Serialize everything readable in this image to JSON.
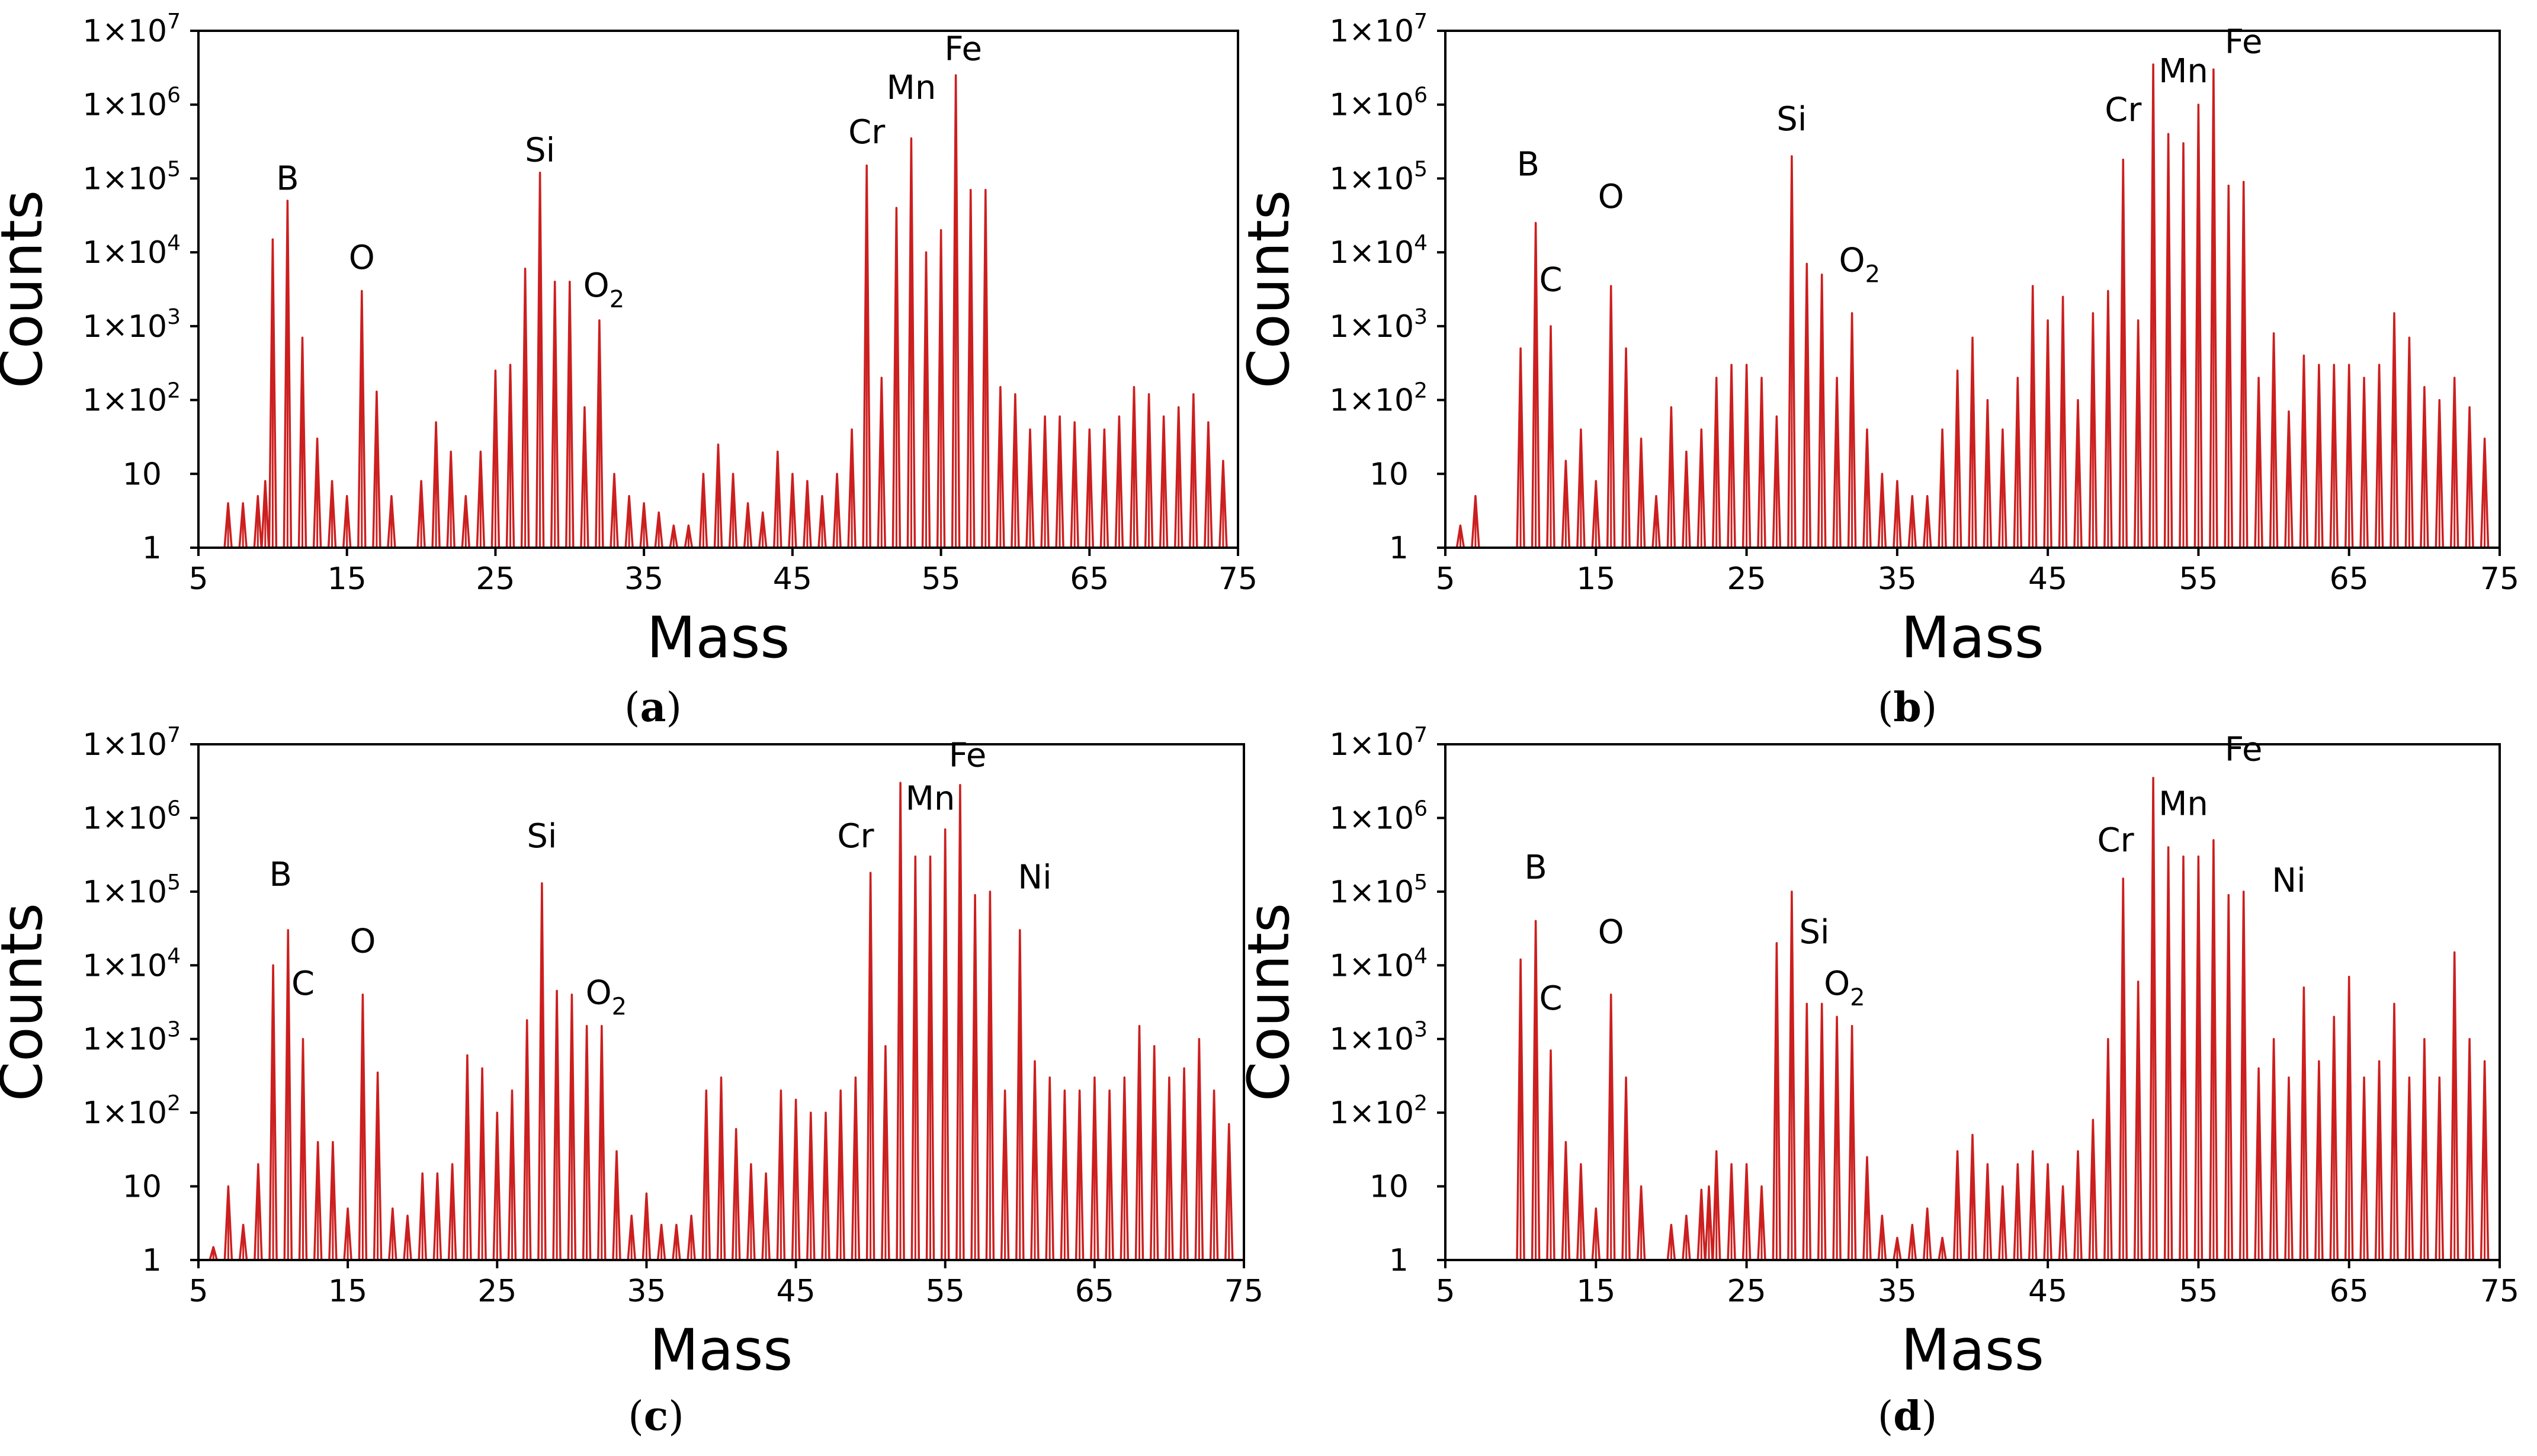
{
  "figure": {
    "series_color": "#cc1f1f",
    "axis_color": "#000000",
    "xlabel": "Mass",
    "ylabel": "Counts",
    "x_range": [
      5,
      75
    ],
    "x_ticks": [
      {
        "value": 5,
        "label": "5"
      },
      {
        "value": 15,
        "label": "15"
      },
      {
        "value": 25,
        "label": "25"
      },
      {
        "value": 35,
        "label": "35"
      },
      {
        "value": 45,
        "label": "45"
      },
      {
        "value": 55,
        "label": "55"
      },
      {
        "value": 65,
        "label": "65"
      },
      {
        "value": 75,
        "label": "75"
      }
    ],
    "y_range_log10": [
      0,
      7
    ],
    "y_ticks": [
      {
        "exp": 0,
        "label": "1"
      },
      {
        "exp": 1,
        "label": "10"
      },
      {
        "exp": 2,
        "label": "1×10",
        "sup": "2"
      },
      {
        "exp": 3,
        "label": "1×10",
        "sup": "3"
      },
      {
        "exp": 4,
        "label": "1×10",
        "sup": "4"
      },
      {
        "exp": 5,
        "label": "1×10",
        "sup": "5"
      },
      {
        "exp": 6,
        "label": "1×10",
        "sup": "6"
      },
      {
        "exp": 7,
        "label": "1×10",
        "sup": "7"
      }
    ]
  },
  "chart_data": [
    {
      "type": "line",
      "panel": "a",
      "caption": "a",
      "xlabel": "Mass",
      "ylabel": "Counts",
      "yscale": "log",
      "xlim": [
        5,
        75
      ],
      "ylim": [
        1,
        10000000
      ],
      "peaks": [
        [
          7,
          4
        ],
        [
          8,
          4
        ],
        [
          9,
          5
        ],
        [
          9.5,
          8
        ],
        [
          10,
          15000
        ],
        [
          11,
          50000
        ],
        [
          12,
          700
        ],
        [
          13,
          30
        ],
        [
          14,
          8
        ],
        [
          15,
          5
        ],
        [
          16,
          3000
        ],
        [
          17,
          130
        ],
        [
          18,
          5
        ],
        [
          20,
          8
        ],
        [
          21,
          50
        ],
        [
          22,
          20
        ],
        [
          23,
          5
        ],
        [
          24,
          20
        ],
        [
          25,
          250
        ],
        [
          26,
          300
        ],
        [
          27,
          6000
        ],
        [
          28,
          120000
        ],
        [
          29,
          4000
        ],
        [
          30,
          4000
        ],
        [
          31,
          80
        ],
        [
          32,
          1200
        ],
        [
          33,
          10
        ],
        [
          34,
          5
        ],
        [
          35,
          4
        ],
        [
          36,
          3
        ],
        [
          37,
          2
        ],
        [
          38,
          2
        ],
        [
          39,
          10
        ],
        [
          40,
          25
        ],
        [
          41,
          10
        ],
        [
          42,
          4
        ],
        [
          43,
          3
        ],
        [
          44,
          20
        ],
        [
          45,
          10
        ],
        [
          46,
          8
        ],
        [
          47,
          5
        ],
        [
          48,
          10
        ],
        [
          49,
          40
        ],
        [
          50,
          150000
        ],
        [
          51,
          200
        ],
        [
          52,
          40000
        ],
        [
          53,
          350000
        ],
        [
          54,
          10000
        ],
        [
          55,
          20000
        ],
        [
          56,
          2500000
        ],
        [
          57,
          70000
        ],
        [
          58,
          70000
        ],
        [
          59,
          150
        ],
        [
          60,
          120
        ],
        [
          61,
          40
        ],
        [
          62,
          60
        ],
        [
          63,
          60
        ],
        [
          64,
          50
        ],
        [
          65,
          40
        ],
        [
          66,
          40
        ],
        [
          67,
          60
        ],
        [
          68,
          150
        ],
        [
          69,
          120
        ],
        [
          70,
          60
        ],
        [
          71,
          80
        ],
        [
          72,
          120
        ],
        [
          73,
          50
        ],
        [
          74,
          15
        ]
      ],
      "labels": [
        {
          "text": "B",
          "x": 11,
          "y": 70000
        },
        {
          "text": "O",
          "x": 16,
          "y": 6000
        },
        {
          "text": "Si",
          "x": 28,
          "y": 170000
        },
        {
          "text": "O",
          "sub": "2",
          "x": 32.3,
          "y": 2500
        },
        {
          "text": "Cr",
          "x": 50,
          "y": 300000
        },
        {
          "text": "Mn",
          "x": 53,
          "y": 1200000
        },
        {
          "text": "Fe",
          "x": 56.5,
          "y": 4000000
        }
      ]
    },
    {
      "type": "line",
      "panel": "b",
      "caption": "b",
      "xlabel": "Mass",
      "ylabel": "Counts",
      "yscale": "log",
      "xlim": [
        5,
        75
      ],
      "ylim": [
        1,
        10000000
      ],
      "peaks": [
        [
          6,
          2
        ],
        [
          7,
          5
        ],
        [
          10,
          500
        ],
        [
          11,
          25000
        ],
        [
          12,
          1000
        ],
        [
          13,
          15
        ],
        [
          14,
          40
        ],
        [
          15,
          8
        ],
        [
          16,
          3500
        ],
        [
          17,
          500
        ],
        [
          18,
          30
        ],
        [
          19,
          5
        ],
        [
          20,
          80
        ],
        [
          21,
          20
        ],
        [
          22,
          40
        ],
        [
          23,
          200
        ],
        [
          24,
          300
        ],
        [
          25,
          300
        ],
        [
          26,
          200
        ],
        [
          27,
          60
        ],
        [
          28,
          200000
        ],
        [
          29,
          7000
        ],
        [
          30,
          5000
        ],
        [
          31,
          200
        ],
        [
          32,
          1500
        ],
        [
          33,
          40
        ],
        [
          34,
          10
        ],
        [
          35,
          8
        ],
        [
          36,
          5
        ],
        [
          37,
          5
        ],
        [
          38,
          40
        ],
        [
          39,
          250
        ],
        [
          40,
          700
        ],
        [
          41,
          100
        ],
        [
          42,
          40
        ],
        [
          43,
          200
        ],
        [
          44,
          3500
        ],
        [
          45,
          1200
        ],
        [
          46,
          2500
        ],
        [
          47,
          100
        ],
        [
          48,
          1500
        ],
        [
          49,
          3000
        ],
        [
          50,
          180000
        ],
        [
          51,
          1200
        ],
        [
          52,
          3500000
        ],
        [
          53,
          400000
        ],
        [
          54,
          300000
        ],
        [
          55,
          1000000
        ],
        [
          56,
          3000000
        ],
        [
          57,
          80000
        ],
        [
          58,
          90000
        ],
        [
          59,
          200
        ],
        [
          60,
          800
        ],
        [
          61,
          70
        ],
        [
          62,
          400
        ],
        [
          63,
          300
        ],
        [
          64,
          300
        ],
        [
          65,
          300
        ],
        [
          66,
          200
        ],
        [
          67,
          300
        ],
        [
          68,
          1500
        ],
        [
          69,
          700
        ],
        [
          70,
          150
        ],
        [
          71,
          100
        ],
        [
          72,
          200
        ],
        [
          73,
          80
        ],
        [
          74,
          30
        ]
      ],
      "labels": [
        {
          "text": "B",
          "x": 10.5,
          "y": 110000
        },
        {
          "text": "C",
          "x": 12,
          "y": 3000
        },
        {
          "text": "O",
          "x": 16,
          "y": 40000
        },
        {
          "text": "Si",
          "x": 28,
          "y": 450000
        },
        {
          "text": "O",
          "sub": "2",
          "x": 32.5,
          "y": 5500
        },
        {
          "text": "Cr",
          "x": 50,
          "y": 600000
        },
        {
          "text": "Mn",
          "x": 54,
          "y": 2000000
        },
        {
          "text": "Fe",
          "x": 58,
          "y": 5000000
        }
      ]
    },
    {
      "type": "line",
      "panel": "c",
      "caption": "c",
      "xlabel": "Mass",
      "ylabel": "Counts",
      "yscale": "log",
      "xlim": [
        5,
        75
      ],
      "ylim": [
        1,
        10000000
      ],
      "peaks": [
        [
          6,
          1.5
        ],
        [
          7,
          10
        ],
        [
          8,
          3
        ],
        [
          9,
          20
        ],
        [
          10,
          10000
        ],
        [
          11,
          30000
        ],
        [
          12,
          1000
        ],
        [
          13,
          40
        ],
        [
          14,
          40
        ],
        [
          15,
          5
        ],
        [
          16,
          4000
        ],
        [
          17,
          350
        ],
        [
          18,
          5
        ],
        [
          19,
          4
        ],
        [
          20,
          15
        ],
        [
          21,
          15
        ],
        [
          22,
          20
        ],
        [
          23,
          600
        ],
        [
          24,
          400
        ],
        [
          25,
          100
        ],
        [
          26,
          200
        ],
        [
          27,
          1800
        ],
        [
          28,
          130000
        ],
        [
          29,
          4500
        ],
        [
          30,
          4000
        ],
        [
          31,
          1500
        ],
        [
          32,
          1500
        ],
        [
          33,
          30
        ],
        [
          34,
          4
        ],
        [
          35,
          8
        ],
        [
          36,
          3
        ],
        [
          37,
          3
        ],
        [
          38,
          4
        ],
        [
          39,
          200
        ],
        [
          40,
          300
        ],
        [
          41,
          60
        ],
        [
          42,
          20
        ],
        [
          43,
          15
        ],
        [
          44,
          200
        ],
        [
          45,
          150
        ],
        [
          46,
          100
        ],
        [
          47,
          100
        ],
        [
          48,
          200
        ],
        [
          49,
          300
        ],
        [
          50,
          180000
        ],
        [
          51,
          800
        ],
        [
          52,
          3000000
        ],
        [
          53,
          300000
        ],
        [
          54,
          300000
        ],
        [
          55,
          700000
        ],
        [
          56,
          2800000
        ],
        [
          57,
          90000
        ],
        [
          58,
          100000
        ],
        [
          59,
          200
        ],
        [
          60,
          30000
        ],
        [
          61,
          500
        ],
        [
          62,
          300
        ],
        [
          63,
          200
        ],
        [
          64,
          200
        ],
        [
          65,
          300
        ],
        [
          66,
          200
        ],
        [
          67,
          300
        ],
        [
          68,
          1500
        ],
        [
          69,
          800
        ],
        [
          70,
          300
        ],
        [
          71,
          400
        ],
        [
          72,
          1000
        ],
        [
          73,
          200
        ],
        [
          74,
          70
        ]
      ],
      "labels": [
        {
          "text": "B",
          "x": 10.5,
          "y": 120000
        },
        {
          "text": "C",
          "x": 12,
          "y": 4000
        },
        {
          "text": "O",
          "x": 16,
          "y": 15000
        },
        {
          "text": "Si",
          "x": 28,
          "y": 400000
        },
        {
          "text": "O",
          "sub": "2",
          "x": 32.3,
          "y": 3000
        },
        {
          "text": "Cr",
          "x": 49,
          "y": 400000
        },
        {
          "text": "Mn",
          "x": 54,
          "y": 1300000
        },
        {
          "text": "Fe",
          "x": 56.5,
          "y": 5000000
        },
        {
          "text": "Ni",
          "x": 61,
          "y": 110000
        }
      ]
    },
    {
      "type": "line",
      "panel": "d",
      "caption": "d",
      "xlabel": "Mass",
      "ylabel": "Counts",
      "yscale": "log",
      "xlim": [
        5,
        75
      ],
      "ylim": [
        1,
        10000000
      ],
      "peaks": [
        [
          10,
          12000
        ],
        [
          11,
          40000
        ],
        [
          12,
          700
        ],
        [
          13,
          40
        ],
        [
          14,
          20
        ],
        [
          15,
          5
        ],
        [
          16,
          4000
        ],
        [
          17,
          300
        ],
        [
          18,
          10
        ],
        [
          20,
          3
        ],
        [
          21,
          4
        ],
        [
          22,
          9
        ],
        [
          22.5,
          10
        ],
        [
          23,
          30
        ],
        [
          24,
          20
        ],
        [
          25,
          20
        ],
        [
          26,
          10
        ],
        [
          27,
          20000
        ],
        [
          28,
          100000
        ],
        [
          29,
          3000
        ],
        [
          30,
          3000
        ],
        [
          31,
          2000
        ],
        [
          32,
          1500
        ],
        [
          33,
          25
        ],
        [
          34,
          4
        ],
        [
          35,
          2
        ],
        [
          36,
          3
        ],
        [
          37,
          5
        ],
        [
          38,
          2
        ],
        [
          39,
          30
        ],
        [
          40,
          50
        ],
        [
          41,
          20
        ],
        [
          42,
          10
        ],
        [
          43,
          20
        ],
        [
          44,
          30
        ],
        [
          45,
          20
        ],
        [
          46,
          10
        ],
        [
          47,
          30
        ],
        [
          48,
          80
        ],
        [
          49,
          1000
        ],
        [
          50,
          150000
        ],
        [
          51,
          6000
        ],
        [
          52,
          3500000
        ],
        [
          53,
          400000
        ],
        [
          54,
          300000
        ],
        [
          55,
          300000
        ],
        [
          56,
          500000
        ],
        [
          57,
          90000
        ],
        [
          58,
          100000
        ],
        [
          59,
          400
        ],
        [
          60,
          1000
        ],
        [
          61,
          300
        ],
        [
          62,
          5000
        ],
        [
          63,
          500
        ],
        [
          64,
          2000
        ],
        [
          65,
          7000
        ],
        [
          66,
          300
        ],
        [
          67,
          500
        ],
        [
          68,
          3000
        ],
        [
          69,
          300
        ],
        [
          70,
          1000
        ],
        [
          71,
          300
        ],
        [
          72,
          15000
        ],
        [
          73,
          1000
        ],
        [
          74,
          500
        ]
      ],
      "labels": [
        {
          "text": "B",
          "x": 11,
          "y": 150000
        },
        {
          "text": "C",
          "x": 12,
          "y": 2500
        },
        {
          "text": "O",
          "x": 16,
          "y": 20000
        },
        {
          "text": "Si",
          "x": 29.5,
          "y": 20000
        },
        {
          "text": "O",
          "sub": "2",
          "x": 31.5,
          "y": 4000
        },
        {
          "text": "Cr",
          "x": 49.5,
          "y": 350000
        },
        {
          "text": "Mn",
          "x": 54,
          "y": 1100000
        },
        {
          "text": "Fe",
          "x": 58,
          "y": 6000000
        },
        {
          "text": "Ni",
          "x": 61,
          "y": 100000
        }
      ]
    }
  ]
}
